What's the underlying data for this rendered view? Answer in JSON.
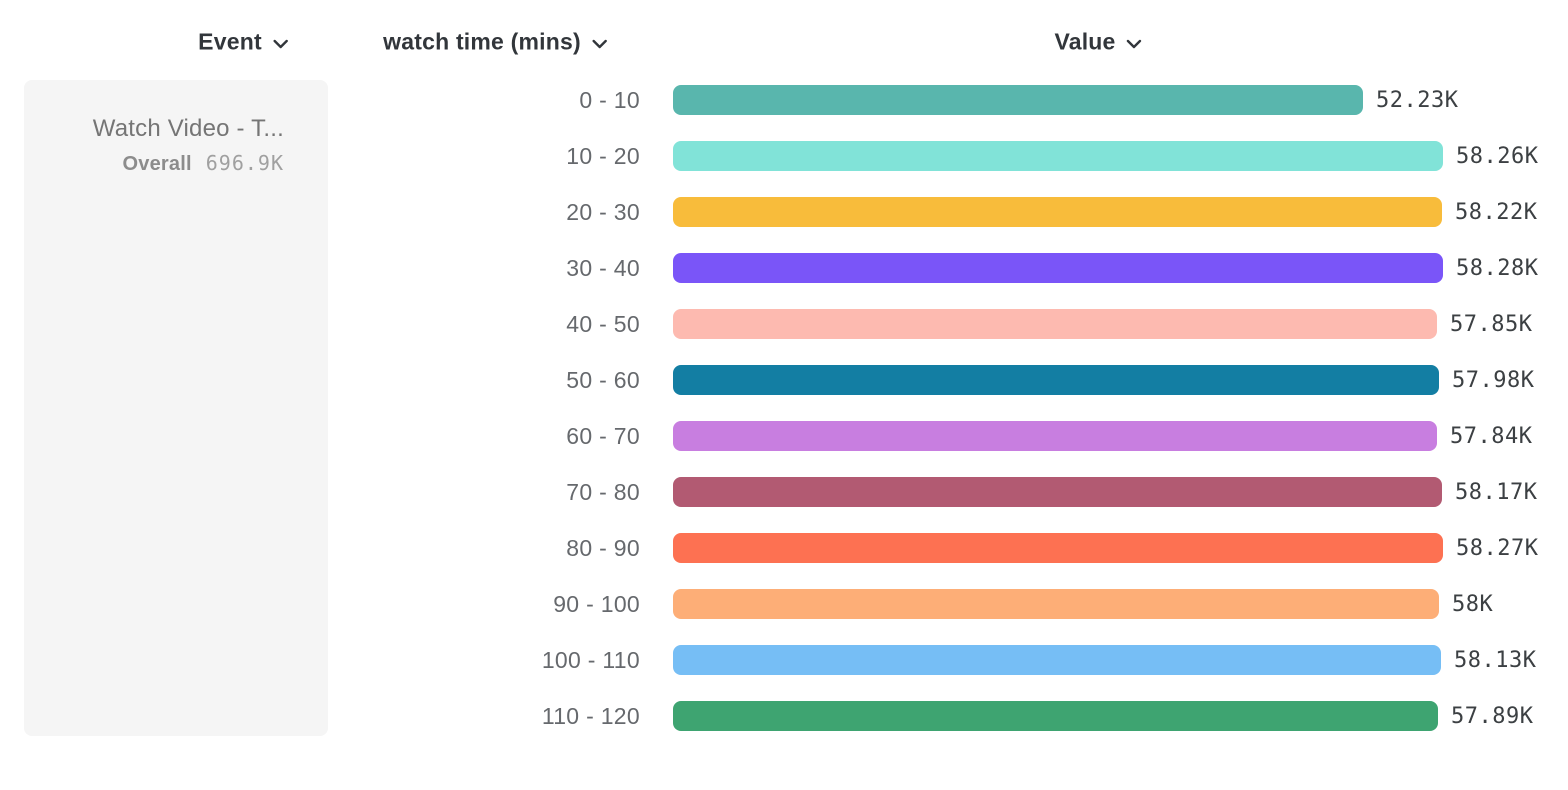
{
  "header": {
    "columns": {
      "event": "Event",
      "breakdown": "watch time (mins)",
      "value": "Value"
    }
  },
  "event_card": {
    "title": "Watch Video - T...",
    "overall_label": "Overall",
    "overall_value": "696.9K"
  },
  "chart_data": {
    "type": "bar",
    "orientation": "horizontal",
    "title": "",
    "xlabel": "Value",
    "ylabel": "watch time (mins)",
    "xlim": [
      0,
      58280
    ],
    "grid": false,
    "legend": "none",
    "categories": [
      "0 - 10",
      "10 - 20",
      "20 - 30",
      "30 - 40",
      "40 - 50",
      "50 - 60",
      "60 - 70",
      "70 - 80",
      "80 - 90",
      "90 - 100",
      "100 - 110",
      "110 - 120"
    ],
    "values": [
      52230,
      58260,
      58220,
      58280,
      57850,
      57980,
      57840,
      58170,
      58270,
      58000,
      58130,
      57890
    ],
    "value_labels": [
      "52.23K",
      "58.26K",
      "58.22K",
      "58.28K",
      "57.85K",
      "57.98K",
      "57.84K",
      "58.17K",
      "58.27K",
      "58K",
      "58.13K",
      "57.89K"
    ],
    "colors": [
      "#59b6ad",
      "#81e3d8",
      "#f8bc3b",
      "#7a55f8",
      "#fdbab0",
      "#137ea3",
      "#c87ee0",
      "#b25a72",
      "#fd7152",
      "#fdae77",
      "#76bef5",
      "#3ea471"
    ]
  },
  "icons": {
    "chevron_down": "chevron-down-icon"
  },
  "colors": {
    "card_background": "#f5f5f5",
    "header_text": "#32363b",
    "row_label_text": "#66696d",
    "value_text": "#3c4043"
  }
}
